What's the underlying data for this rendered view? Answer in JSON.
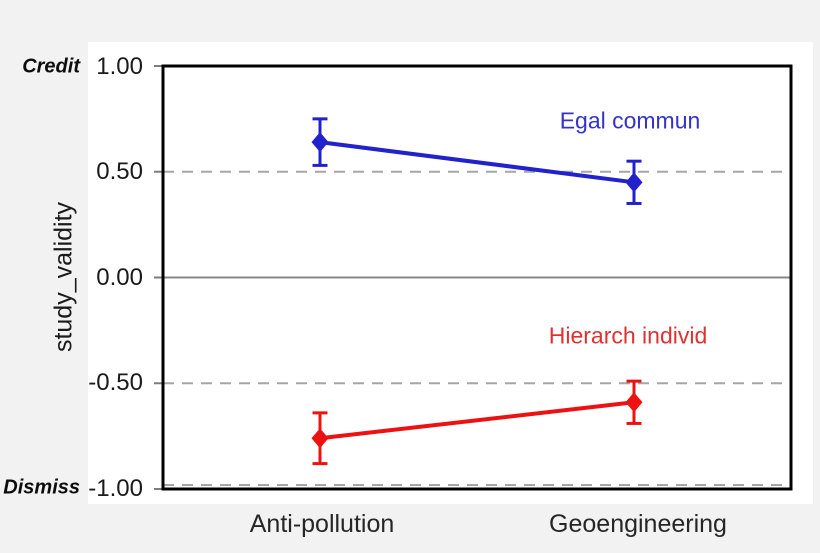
{
  "figure": {
    "background_color": "#f2f2f2",
    "panel_color": "#ffffff"
  },
  "chart_data": {
    "type": "line",
    "title": "",
    "categories": [
      "Anti-pollution",
      "Geoengineering"
    ],
    "series": [
      {
        "name": "Egal commun",
        "color": "#2222cc",
        "label_color": "#3333cc",
        "values": [
          0.64,
          0.45
        ],
        "errors": [
          0.11,
          0.1
        ]
      },
      {
        "name": "Hierarch individ",
        "color": "#ee1111",
        "label_color": "#e03131",
        "values": [
          -0.76,
          -0.59
        ],
        "errors": [
          0.12,
          0.1
        ]
      }
    ],
    "ylabel": "study_validity",
    "xlabel": "",
    "ylim": [
      -1.0,
      1.0
    ],
    "yticks": [
      1.0,
      0.5,
      0.0,
      -0.5,
      -1.0
    ],
    "ytick_labels": [
      "1.00",
      "0.50",
      "0.00",
      "-0.50",
      "-1.00"
    ],
    "y_axis_anchors": {
      "top": "Credit",
      "bottom": "Dismiss"
    },
    "gridlines": [
      {
        "y": 0.5,
        "style": "dashed"
      },
      {
        "y": 0.0,
        "style": "solid"
      },
      {
        "y": -0.5,
        "style": "dashed"
      },
      {
        "y": -1.0,
        "style": "dashed"
      }
    ],
    "grid_dash_color": "#a6a6a6",
    "grid_solid_color": "#878787",
    "tick_color": "#7d7d7d",
    "axis_color": "#000000",
    "legend_position": "inline-labels",
    "marker": "diamond",
    "error_bars": true
  }
}
